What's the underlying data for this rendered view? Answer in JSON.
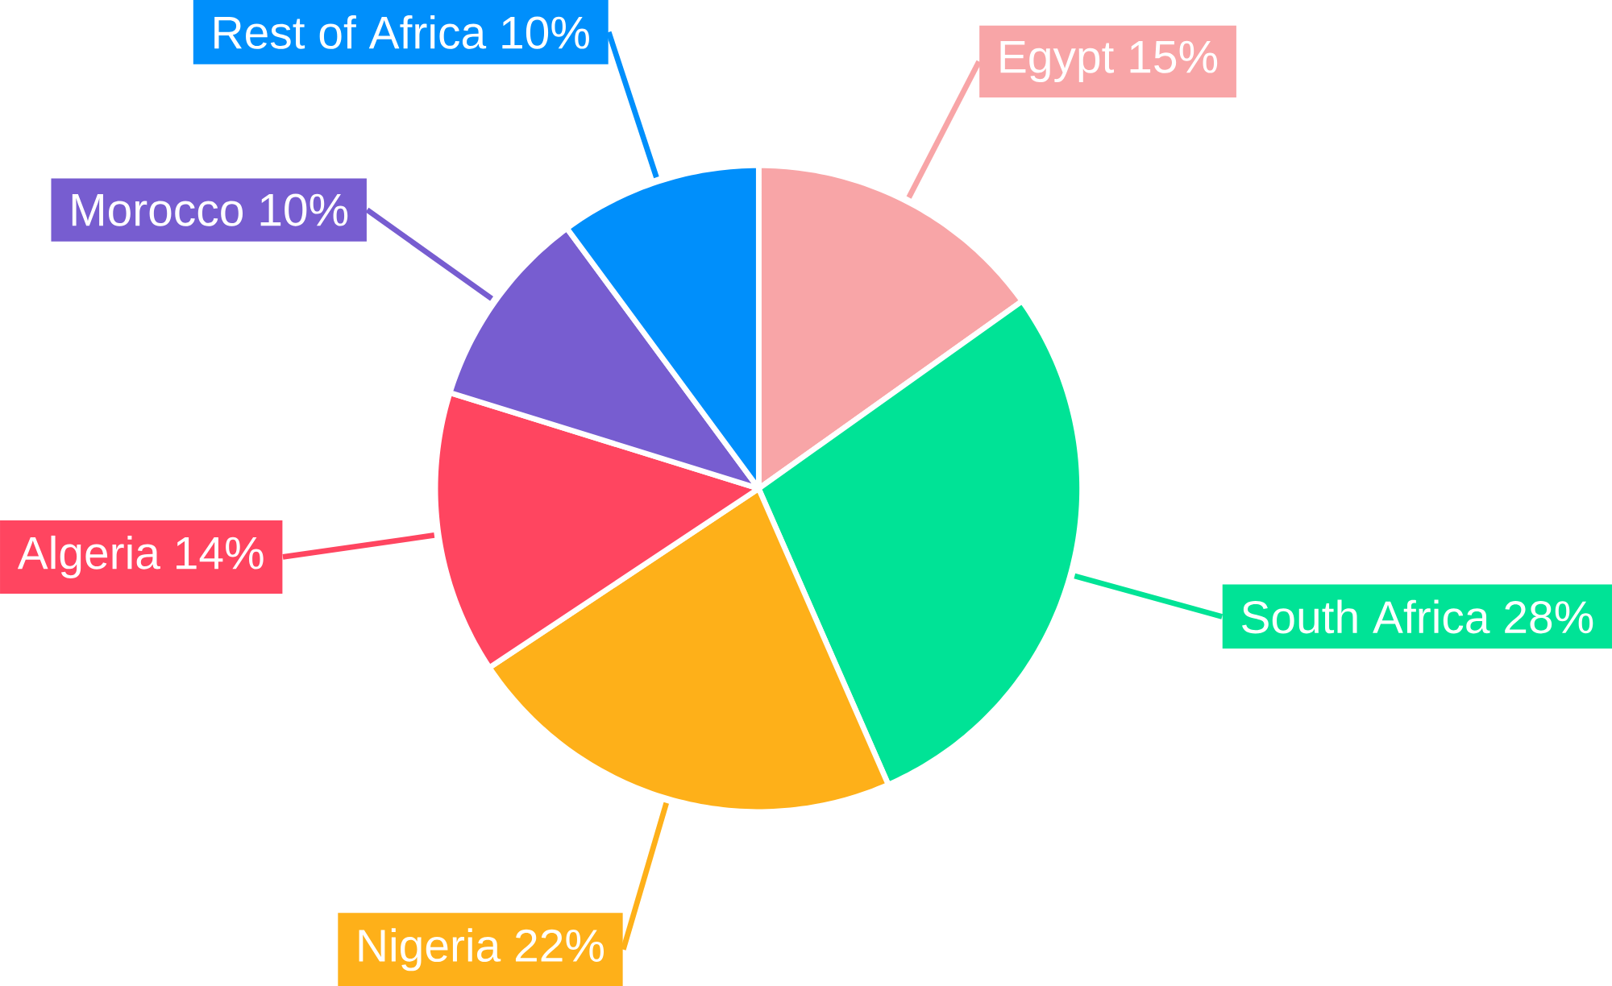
{
  "chart_data": {
    "type": "pie",
    "categories": [
      "Egypt",
      "South Africa",
      "Nigeria",
      "Algeria",
      "Morocco",
      "Rest of Africa"
    ],
    "values": [
      15,
      28,
      22,
      14,
      10,
      10
    ],
    "value_labels": [
      "15%",
      "28%",
      "22%",
      "14%",
      "10%",
      "10%"
    ],
    "colors": [
      "#f8a5a7",
      "#00e396",
      "#feb019",
      "#ff4560",
      "#775dd0",
      "#008ffb"
    ]
  }
}
